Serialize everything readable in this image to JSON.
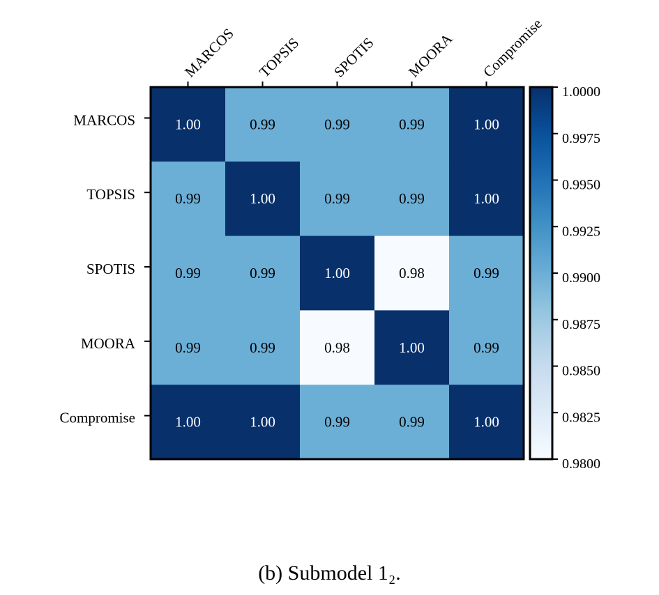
{
  "chart_data": {
    "type": "heatmap",
    "rows": [
      "MARCOS",
      "TOPSIS",
      "SPOTIS",
      "MOORA",
      "Compromise"
    ],
    "columns": [
      "MARCOS",
      "TOPSIS",
      "SPOTIS",
      "MOORA",
      "Compromise"
    ],
    "values": [
      [
        1.0,
        0.99,
        0.99,
        0.99,
        1.0
      ],
      [
        0.99,
        1.0,
        0.99,
        0.99,
        1.0
      ],
      [
        0.99,
        0.99,
        1.0,
        0.98,
        0.99
      ],
      [
        0.99,
        0.99,
        0.98,
        1.0,
        0.99
      ],
      [
        1.0,
        1.0,
        0.99,
        0.99,
        1.0
      ]
    ],
    "cell_labels": [
      [
        "1.00",
        "0.99",
        "0.99",
        "0.99",
        "1.00"
      ],
      [
        "0.99",
        "1.00",
        "0.99",
        "0.99",
        "1.00"
      ],
      [
        "0.99",
        "0.99",
        "1.00",
        "0.98",
        "0.99"
      ],
      [
        "0.99",
        "0.99",
        "0.98",
        "1.00",
        "0.99"
      ],
      [
        "1.00",
        "1.00",
        "0.99",
        "0.99",
        "1.00"
      ]
    ],
    "colorbar": {
      "range": [
        0.98,
        1.0
      ],
      "ticks": [
        "1.0000",
        "0.9975",
        "0.9950",
        "0.9925",
        "0.9900",
        "0.9875",
        "0.9850",
        "0.9825",
        "0.9800"
      ],
      "tick_values": [
        1.0,
        0.9975,
        0.995,
        0.9925,
        0.99,
        0.9875,
        0.985,
        0.9825,
        0.98
      ],
      "colormap": "Blues",
      "color_low": "#f7fbff",
      "color_high": "#08306b"
    },
    "caption": "(b) Submodel 1₂."
  }
}
